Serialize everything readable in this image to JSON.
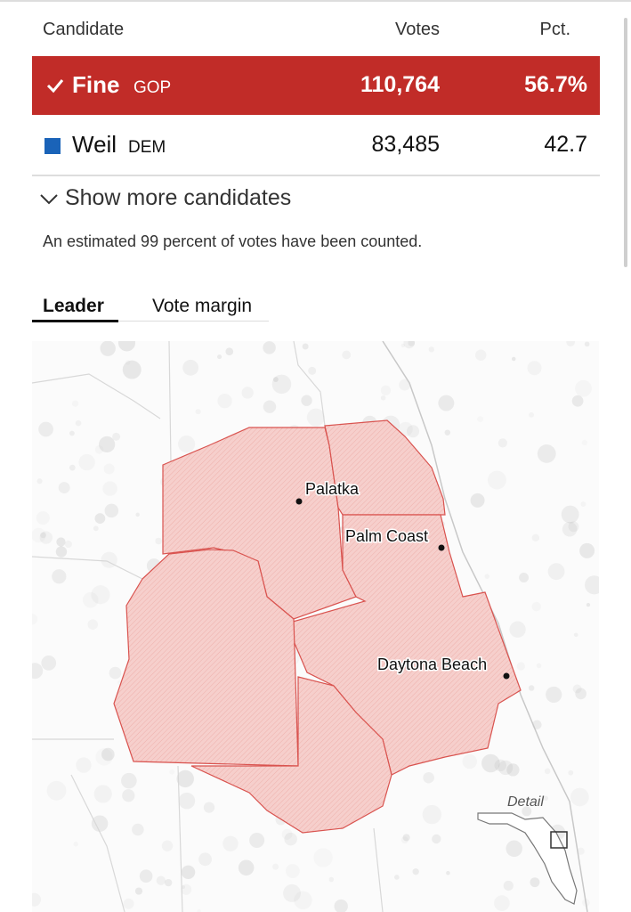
{
  "table": {
    "headers": [
      "Candidate",
      "Votes",
      "Pct."
    ],
    "rows": [
      {
        "name": "Fine",
        "party": "GOP",
        "votes": "110,764",
        "pct": "56.7%",
        "winner": true
      },
      {
        "name": "Weil",
        "party": "DEM",
        "votes": "83,485",
        "pct": "42.7",
        "winner": false
      }
    ]
  },
  "show_more": "Show more candidates",
  "note": "An estimated 99 percent of votes have been counted.",
  "tabs": [
    "Leader",
    "Vote margin"
  ],
  "map": {
    "cities": [
      "Palatka",
      "Palm Coast",
      "Daytona Beach"
    ],
    "inset_label": "Detail"
  }
}
